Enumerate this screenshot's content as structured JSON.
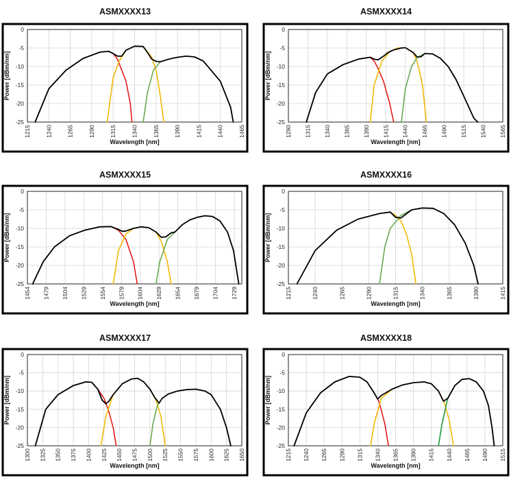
{
  "colors": {
    "total": "#000000",
    "red": "#e31b1b",
    "yellow": "#f2b705",
    "green": "#6aa84f",
    "dark_green": "#1e9a3a",
    "grid": "#d4d4d4"
  },
  "chart_data": [
    {
      "type": "line",
      "title": "ASMXXXX13",
      "xlabel": "Wavelength [nm]",
      "ylabel": "Power [dBm/nm]",
      "xlim": [
        1215,
        1465
      ],
      "ylim": [
        -25,
        0
      ],
      "xticks": [
        "1215",
        "1240",
        "1265",
        "1290",
        "1315",
        "1340",
        "1365",
        "1390",
        "1415",
        "1440",
        "1465"
      ],
      "yticks": [
        "0",
        "-5",
        "-10",
        "-15",
        "-20",
        "-25"
      ],
      "grid": true,
      "series": [
        {
          "color": "red",
          "x": [
            1224,
            1240,
            1260,
            1280,
            1300,
            1310,
            1315,
            1320,
            1330,
            1335,
            1337
          ],
          "y": [
            -25,
            -16,
            -11,
            -7.8,
            -6.1,
            -5.9,
            -6.5,
            -8,
            -14,
            -20,
            -25
          ]
        },
        {
          "color": "yellow",
          "x": [
            1308,
            1315,
            1322,
            1330,
            1340,
            1350,
            1360,
            1365,
            1370,
            1374
          ],
          "y": [
            -25,
            -13,
            -8.5,
            -5.6,
            -4.5,
            -4.6,
            -7.5,
            -11,
            -18,
            -25
          ]
        },
        {
          "color": "green",
          "x": [
            1350,
            1355,
            1362,
            1370,
            1380,
            1390,
            1400,
            1410,
            1420,
            1440,
            1452,
            1455
          ],
          "y": [
            -25,
            -17,
            -11,
            -8.7,
            -8,
            -7.5,
            -7.2,
            -7.4,
            -8.5,
            -14,
            -21,
            -25
          ]
        },
        {
          "color": "total",
          "x": [
            1224,
            1240,
            1260,
            1280,
            1300,
            1310,
            1315,
            1320,
            1325,
            1330,
            1340,
            1350,
            1355,
            1360,
            1365,
            1370,
            1380,
            1390,
            1400,
            1410,
            1420,
            1440,
            1452,
            1455
          ],
          "y": [
            -25,
            -16,
            -11,
            -7.8,
            -6.1,
            -5.9,
            -6.5,
            -7.2,
            -7.2,
            -5.6,
            -4.5,
            -4.6,
            -6.2,
            -8,
            -8.6,
            -8.7,
            -8,
            -7.5,
            -7.2,
            -7.4,
            -8.5,
            -14,
            -21,
            -25
          ]
        }
      ]
    },
    {
      "type": "line",
      "title": "ASMXXXX14",
      "xlabel": "Wavelength [nm]",
      "ylabel": "Power [dBm/nm]",
      "xlim": [
        1290,
        1565
      ],
      "ylim": [
        -25,
        0
      ],
      "xticks": [
        "1290",
        "1315",
        "1340",
        "1365",
        "1390",
        "1415",
        "1440",
        "1465",
        "1490",
        "1515",
        "1540",
        "1565"
      ],
      "yticks": [
        "0",
        "-5",
        "-10",
        "-15",
        "-20",
        "-25"
      ],
      "grid": true,
      "series": [
        {
          "color": "red",
          "x": [
            1313,
            1325,
            1340,
            1360,
            1380,
            1395,
            1400,
            1405,
            1412,
            1420,
            1425
          ],
          "y": [
            -25,
            -17,
            -12,
            -9.5,
            -8,
            -7.5,
            -8.5,
            -10.5,
            -14,
            -20,
            -25
          ]
        },
        {
          "color": "yellow",
          "x": [
            1395,
            1400,
            1410,
            1420,
            1430,
            1440,
            1450,
            1455,
            1462,
            1467
          ],
          "y": [
            -25,
            -15,
            -8.5,
            -6,
            -5,
            -4.9,
            -6.2,
            -8.5,
            -15,
            -25
          ]
        },
        {
          "color": "green",
          "x": [
            1435,
            1440,
            1448,
            1455,
            1465,
            1475,
            1485,
            1495,
            1505,
            1515,
            1528,
            1533
          ],
          "y": [
            -25,
            -16,
            -10,
            -7.6,
            -6.5,
            -6.6,
            -7.8,
            -10,
            -13.5,
            -18,
            -24,
            -25
          ]
        },
        {
          "color": "total",
          "x": [
            1313,
            1325,
            1340,
            1360,
            1380,
            1395,
            1400,
            1405,
            1412,
            1418,
            1425,
            1435,
            1440,
            1450,
            1455,
            1460,
            1465,
            1475,
            1485,
            1495,
            1505,
            1515,
            1528,
            1533
          ],
          "y": [
            -25,
            -17,
            -12,
            -9.5,
            -8,
            -7.5,
            -8,
            -8.2,
            -7.2,
            -6.2,
            -5.5,
            -5,
            -4.9,
            -6.2,
            -7.4,
            -7.4,
            -6.5,
            -6.6,
            -7.8,
            -10,
            -13.5,
            -18,
            -24,
            -25
          ]
        }
      ]
    },
    {
      "type": "line",
      "title": "ASMXXXX15",
      "xlabel": "Wavelength [nm]",
      "ylabel": "Power [dBm/nm]",
      "xlim": [
        1454,
        1739
      ],
      "ylim": [
        -25,
        0
      ],
      "xticks": [
        "1454",
        "1479",
        "1504",
        "1529",
        "1554",
        "1579",
        "1604",
        "1629",
        "1654",
        "1679",
        "1704",
        "1729"
      ],
      "yticks": [
        "0",
        "-5",
        "-10",
        "-15",
        "-20",
        "-25"
      ],
      "grid": true,
      "series": [
        {
          "color": "red",
          "x": [
            1461,
            1475,
            1490,
            1510,
            1530,
            1550,
            1565,
            1575,
            1585,
            1595,
            1600
          ],
          "y": [
            -25,
            -19,
            -15,
            -12,
            -10.5,
            -9.6,
            -9.5,
            -10.5,
            -13,
            -19,
            -25
          ]
        },
        {
          "color": "yellow",
          "x": [
            1568,
            1575,
            1585,
            1595,
            1605,
            1615,
            1625,
            1632,
            1640,
            1645
          ],
          "y": [
            -25,
            -16,
            -11.5,
            -10,
            -9.6,
            -9.8,
            -11,
            -13.5,
            -19,
            -25
          ]
        },
        {
          "color": "green",
          "x": [
            1625,
            1630,
            1640,
            1650,
            1660,
            1670,
            1680,
            1690,
            1700,
            1710,
            1720,
            1728,
            1735
          ],
          "y": [
            -25,
            -19,
            -13,
            -11,
            -9,
            -7.7,
            -7,
            -6.6,
            -6.8,
            -8,
            -11,
            -16,
            -25
          ]
        },
        {
          "color": "total",
          "x": [
            1461,
            1475,
            1490,
            1510,
            1530,
            1550,
            1565,
            1575,
            1580,
            1585,
            1595,
            1605,
            1615,
            1625,
            1632,
            1638,
            1645,
            1650,
            1660,
            1670,
            1680,
            1690,
            1700,
            1710,
            1720,
            1728,
            1735
          ],
          "y": [
            -25,
            -19,
            -15,
            -12,
            -10.5,
            -9.6,
            -9.5,
            -10.3,
            -10.8,
            -10.7,
            -10,
            -9.6,
            -9.8,
            -11,
            -12.4,
            -12.3,
            -11.2,
            -11,
            -9,
            -7.7,
            -7,
            -6.6,
            -6.8,
            -8,
            -11,
            -16,
            -25
          ]
        }
      ]
    },
    {
      "type": "line",
      "title": "ASMXXXX16",
      "xlabel": "Wavelength [nm]",
      "ylabel": "Power [dBm/nm]",
      "xlim": [
        1215,
        1415
      ],
      "ylim": [
        -25,
        0
      ],
      "xticks": [
        "1215",
        "1240",
        "1265",
        "1290",
        "1315",
        "1340",
        "1365",
        "1390",
        "1415"
      ],
      "yticks": [
        "0",
        "-5",
        "-10",
        "-15",
        "-20",
        "-25"
      ],
      "grid": true,
      "series": [
        {
          "color": "yellow",
          "x": [
            1223,
            1240,
            1260,
            1280,
            1300,
            1310,
            1315,
            1320,
            1325,
            1330,
            1334
          ],
          "y": [
            -25,
            -16,
            -10.5,
            -7.5,
            -6,
            -5.6,
            -6.5,
            -8,
            -11.5,
            -17,
            -25
          ]
        },
        {
          "color": "green",
          "x": [
            1300,
            1305,
            1310,
            1320,
            1330,
            1340,
            1350,
            1360,
            1370,
            1380,
            1388,
            1392
          ],
          "y": [
            -25,
            -15,
            -10,
            -6.5,
            -5,
            -4.5,
            -4.6,
            -6,
            -9,
            -14,
            -20,
            -25
          ]
        },
        {
          "color": "total",
          "x": [
            1223,
            1240,
            1260,
            1280,
            1300,
            1310,
            1315,
            1320,
            1330,
            1340,
            1350,
            1360,
            1370,
            1380,
            1388,
            1392
          ],
          "y": [
            -25,
            -16,
            -10.5,
            -7.5,
            -6,
            -5.6,
            -7,
            -7.2,
            -5,
            -4.5,
            -4.6,
            -6,
            -9,
            -14,
            -20,
            -25
          ]
        }
      ]
    },
    {
      "type": "line",
      "title": "ASMXXXX17",
      "xlabel": "Wavelength [nm]",
      "ylabel": "Power [dBm/nm]",
      "xlim": [
        1300,
        1650
      ],
      "ylim": [
        -25,
        0
      ],
      "xticks": [
        "1300",
        "1325",
        "1350",
        "1375",
        "1400",
        "1425",
        "1450",
        "1475",
        "1500",
        "1525",
        "1550",
        "1575",
        "1600",
        "1625",
        "1650"
      ],
      "yticks": [
        "0",
        "-5",
        "-10",
        "-15",
        "-20",
        "-25"
      ],
      "grid": true,
      "series": [
        {
          "color": "red",
          "x": [
            1313,
            1330,
            1350,
            1375,
            1395,
            1405,
            1415,
            1425,
            1432,
            1440,
            1445
          ],
          "y": [
            -25,
            -15,
            -11,
            -8.5,
            -7.5,
            -7.6,
            -9.5,
            -12,
            -15,
            -20,
            -25
          ]
        },
        {
          "color": "yellow",
          "x": [
            1420,
            1428,
            1440,
            1455,
            1470,
            1480,
            1490,
            1500,
            1510,
            1518,
            1525
          ],
          "y": [
            -25,
            -17,
            -11,
            -8,
            -6.7,
            -6.5,
            -7.5,
            -9.5,
            -12.5,
            -17,
            -25
          ]
        },
        {
          "color": "green",
          "x": [
            1500,
            1505,
            1512,
            1520,
            1530,
            1545,
            1560,
            1575,
            1590,
            1600,
            1615,
            1625,
            1632
          ],
          "y": [
            -25,
            -19,
            -14,
            -12,
            -10.8,
            -10,
            -9.6,
            -9.5,
            -10,
            -11,
            -15,
            -20,
            -25
          ]
        },
        {
          "color": "total",
          "x": [
            1313,
            1330,
            1350,
            1375,
            1395,
            1405,
            1415,
            1422,
            1428,
            1433,
            1440,
            1455,
            1470,
            1480,
            1490,
            1500,
            1508,
            1515,
            1520,
            1530,
            1545,
            1560,
            1575,
            1590,
            1600,
            1615,
            1625,
            1632
          ],
          "y": [
            -25,
            -15,
            -11,
            -8.5,
            -7.5,
            -7.6,
            -9.5,
            -12.5,
            -13.5,
            -12.8,
            -11,
            -8,
            -6.7,
            -6.5,
            -7.5,
            -9.5,
            -11.8,
            -13.3,
            -12,
            -10.8,
            -10,
            -9.6,
            -9.5,
            -10,
            -11,
            -15,
            -20,
            -25
          ]
        }
      ]
    },
    {
      "type": "line",
      "title": "ASMXXXX18",
      "xlabel": "Wavelength [nm]",
      "ylabel": "Power [dBm/nm]",
      "xlim": [
        1215,
        1515
      ],
      "ylim": [
        -25,
        0
      ],
      "xticks": [
        "1215",
        "1240",
        "1265",
        "1290",
        "1315",
        "1340",
        "1365",
        "1390",
        "1415",
        "1440",
        "1465",
        "1490",
        "1515"
      ],
      "yticks": [
        "0",
        "-5",
        "-10",
        "-15",
        "-20",
        "-25"
      ],
      "grid": true,
      "series": [
        {
          "color": "red",
          "x": [
            1223,
            1240,
            1260,
            1280,
            1300,
            1315,
            1325,
            1335,
            1342,
            1350,
            1355
          ],
          "y": [
            -25,
            -16,
            -10.5,
            -7.5,
            -6,
            -6.2,
            -7.5,
            -10.5,
            -13,
            -19,
            -25
          ]
        },
        {
          "color": "yellow",
          "x": [
            1330,
            1335,
            1345,
            1360,
            1375,
            1390,
            1405,
            1415,
            1425,
            1433,
            1440,
            1446
          ],
          "y": [
            -25,
            -19,
            -12,
            -9.5,
            -8.3,
            -7.7,
            -7.5,
            -8,
            -10,
            -13,
            -18,
            -25
          ]
        },
        {
          "color": "dark_green",
          "x": [
            1425,
            1430,
            1438,
            1448,
            1458,
            1468,
            1478,
            1488,
            1495,
            1500,
            1503
          ],
          "y": [
            -25,
            -19,
            -12,
            -8.5,
            -6.8,
            -6.6,
            -7.5,
            -10,
            -14,
            -20,
            -25
          ]
        },
        {
          "color": "total",
          "x": [
            1223,
            1240,
            1260,
            1280,
            1300,
            1315,
            1325,
            1335,
            1340,
            1345,
            1360,
            1375,
            1390,
            1405,
            1415,
            1425,
            1432,
            1438,
            1448,
            1458,
            1468,
            1478,
            1488,
            1495,
            1500,
            1503
          ],
          "y": [
            -25,
            -16,
            -10.5,
            -7.5,
            -6,
            -6.2,
            -7.5,
            -10.5,
            -12.2,
            -11.2,
            -9.5,
            -8.3,
            -7.7,
            -7.5,
            -8,
            -10,
            -12.8,
            -12,
            -8.5,
            -6.8,
            -6.6,
            -7.5,
            -10,
            -14,
            -20,
            -25
          ]
        }
      ]
    }
  ]
}
